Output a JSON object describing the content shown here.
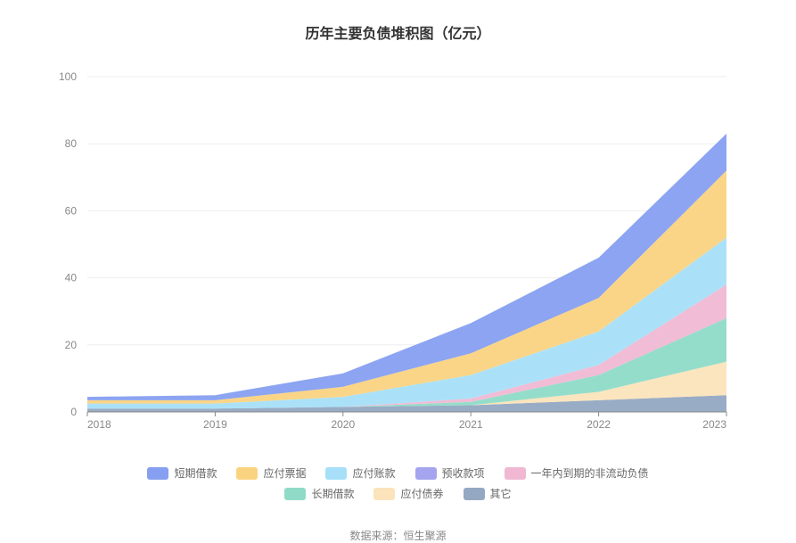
{
  "chart": {
    "type": "area-stacked",
    "title": "历年主要负债堆积图（亿元）",
    "title_fontsize": 16,
    "title_fontweight": "bold",
    "title_color": "#333333",
    "categories": [
      "2018",
      "2019",
      "2020",
      "2021",
      "2022",
      "2023"
    ],
    "ylim": [
      0,
      100
    ],
    "ytick_step": 20,
    "yticks": [
      0,
      20,
      40,
      60,
      80,
      100
    ],
    "axis_label_color": "#888888",
    "axis_label_fontsize": 12,
    "axis_line_color": "#888888",
    "grid_color": "#eeeeee",
    "background_color": "#ffffff",
    "plot_inner_width": 717,
    "plot_inner_height": 376,
    "plot_left_pad": 60,
    "plot_top_pad": 10,
    "series_order_bottom_to_top": [
      "其它",
      "应付债券",
      "长期借款",
      "一年内到期的非流动负债",
      "预收款项",
      "应付账款",
      "应付票据",
      "短期借款"
    ],
    "series": {
      "短期借款": {
        "color": "#869ff0",
        "values": [
          1.0,
          1.5,
          4.0,
          9.0,
          12.0,
          11.0
        ]
      },
      "应付票据": {
        "color": "#fad381",
        "values": [
          1.0,
          1.0,
          3.0,
          6.5,
          10.0,
          20.0
        ]
      },
      "应付账款": {
        "color": "#a7dff8",
        "values": [
          1.5,
          1.5,
          3.0,
          7.0,
          10.0,
          14.0
        ]
      },
      "预收款项": {
        "color": "#a5a4ef",
        "values": [
          0.0,
          0.0,
          0.0,
          0.0,
          0.0,
          0.0
        ]
      },
      "一年内到期的非流动负债": {
        "color": "#f0b8d3",
        "values": [
          0.0,
          0.0,
          0.0,
          1.0,
          3.0,
          10.0
        ]
      },
      "长期借款": {
        "color": "#8fdbc8",
        "values": [
          0.0,
          0.0,
          0.0,
          1.0,
          5.0,
          13.0
        ]
      },
      "应付债券": {
        "color": "#fbe4bb",
        "values": [
          0.0,
          0.0,
          0.0,
          0.0,
          2.5,
          10.0
        ]
      },
      "其它": {
        "color": "#94a8c2",
        "values": [
          1.0,
          1.0,
          1.5,
          2.0,
          3.5,
          5.0
        ]
      }
    },
    "legend_order": [
      "短期借款",
      "应付票据",
      "应付账款",
      "预收款项",
      "一年内到期的非流动负债",
      "长期借款",
      "应付债券",
      "其它"
    ],
    "legend_fontsize": 12,
    "legend_text_color": "#666666",
    "source_label": "数据来源：恒生聚源",
    "source_fontsize": 12,
    "source_color": "#888888"
  }
}
